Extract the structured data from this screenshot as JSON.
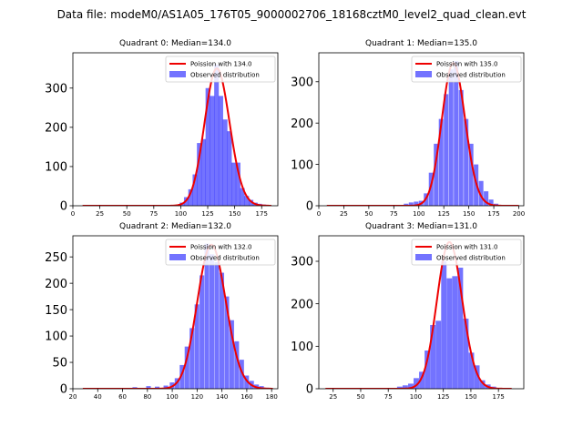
{
  "suptitle": "Data file: modeM0/AS1A05_176T05_9000002706_18168cztM0_level2_quad_clean.evt",
  "colors": {
    "hist": "#0000ff",
    "poisson": "#ee0000"
  },
  "chart_data": [
    {
      "type": "bar",
      "title": "Quadrant 0: Median=134.0",
      "xlim": [
        0,
        190
      ],
      "ylim": [
        0,
        390
      ],
      "xticks": [
        0,
        25,
        50,
        75,
        100,
        125,
        150,
        175
      ],
      "yticks": [
        0,
        100,
        200,
        300
      ],
      "bin_width": 4.3,
      "bins": [
        [
          95,
          3
        ],
        [
          99,
          8
        ],
        [
          103,
          22
        ],
        [
          107,
          42
        ],
        [
          111,
          80
        ],
        [
          115,
          160
        ],
        [
          119,
          170
        ],
        [
          123,
          300
        ],
        [
          127,
          280
        ],
        [
          131,
          360
        ],
        [
          135,
          280
        ],
        [
          139,
          220
        ],
        [
          143,
          190
        ],
        [
          147,
          110
        ],
        [
          151,
          110
        ],
        [
          155,
          45
        ],
        [
          159,
          25
        ],
        [
          163,
          15
        ],
        [
          167,
          8
        ],
        [
          171,
          5
        ],
        [
          175,
          3
        ]
      ],
      "poisson_mean": 134.0,
      "poisson_peak": 350,
      "poisson_xrange": [
        9,
        184
      ],
      "legend": {
        "line": "Poission with 134.0",
        "patch": "Observed distribution"
      }
    },
    {
      "type": "bar",
      "title": "Quadrant 1: Median=135.0",
      "xlim": [
        0,
        205
      ],
      "ylim": [
        0,
        370
      ],
      "xticks": [
        0,
        25,
        50,
        75,
        100,
        125,
        150,
        175,
        200
      ],
      "yticks": [
        0,
        100,
        200,
        300
      ],
      "bin_width": 4.6,
      "bins": [
        [
          85,
          5
        ],
        [
          90,
          8
        ],
        [
          95,
          10
        ],
        [
          100,
          12
        ],
        [
          105,
          30
        ],
        [
          110,
          80
        ],
        [
          115,
          150
        ],
        [
          120,
          210
        ],
        [
          125,
          270
        ],
        [
          130,
          330
        ],
        [
          135,
          350
        ],
        [
          140,
          280
        ],
        [
          145,
          210
        ],
        [
          150,
          150
        ],
        [
          155,
          100
        ],
        [
          160,
          60
        ],
        [
          165,
          35
        ],
        [
          170,
          15
        ],
        [
          175,
          5
        ]
      ],
      "poisson_mean": 135.0,
      "poisson_peak": 345,
      "poisson_xrange": [
        8,
        200
      ],
      "legend": {
        "line": "Poission with 135.0",
        "patch": "Observed distribution"
      }
    },
    {
      "type": "bar",
      "title": "Quadrant 2: Median=132.0",
      "xlim": [
        20,
        185
      ],
      "ylim": [
        0,
        290
      ],
      "xticks": [
        20,
        40,
        60,
        80,
        100,
        120,
        140,
        160,
        180
      ],
      "yticks": [
        0,
        50,
        100,
        150,
        200,
        250
      ],
      "bin_width": 3.75,
      "bins": [
        [
          68,
          3
        ],
        [
          79,
          5
        ],
        [
          86,
          4
        ],
        [
          93,
          6
        ],
        [
          98,
          12
        ],
        [
          102,
          20
        ],
        [
          106,
          45
        ],
        [
          110,
          80
        ],
        [
          114,
          115
        ],
        [
          118,
          160
        ],
        [
          122,
          215
        ],
        [
          126,
          275
        ],
        [
          130,
          255
        ],
        [
          134,
          240
        ],
        [
          138,
          220
        ],
        [
          142,
          175
        ],
        [
          146,
          130
        ],
        [
          150,
          90
        ],
        [
          154,
          55
        ],
        [
          158,
          25
        ],
        [
          162,
          15
        ],
        [
          166,
          8
        ],
        [
          170,
          5
        ],
        [
          174,
          2
        ]
      ],
      "poisson_mean": 132.0,
      "poisson_peak": 273,
      "poisson_xrange": [
        28,
        181
      ],
      "legend": {
        "line": "Poission with 132.0",
        "patch": "Observed distribution"
      }
    },
    {
      "type": "bar",
      "title": "Quadrant 3: Median=131.0",
      "xlim": [
        12,
        198
      ],
      "ylim": [
        0,
        360
      ],
      "xticks": [
        25,
        50,
        75,
        100,
        125,
        150,
        175
      ],
      "yticks": [
        0,
        100,
        200,
        300
      ],
      "bin_width": 4.9,
      "bins": [
        [
          83,
          5
        ],
        [
          88,
          8
        ],
        [
          93,
          12
        ],
        [
          98,
          25
        ],
        [
          103,
          40
        ],
        [
          108,
          90
        ],
        [
          113,
          150
        ],
        [
          118,
          160
        ],
        [
          123,
          300
        ],
        [
          128,
          260
        ],
        [
          133,
          265
        ],
        [
          138,
          285
        ],
        [
          143,
          165
        ],
        [
          148,
          85
        ],
        [
          153,
          55
        ],
        [
          158,
          20
        ],
        [
          163,
          10
        ],
        [
          168,
          5
        ]
      ],
      "poisson_mean": 131.0,
      "poisson_peak": 345,
      "poisson_xrange": [
        18,
        187
      ],
      "legend": {
        "line": "Poission with 131.0",
        "patch": "Observed distribution"
      }
    }
  ]
}
